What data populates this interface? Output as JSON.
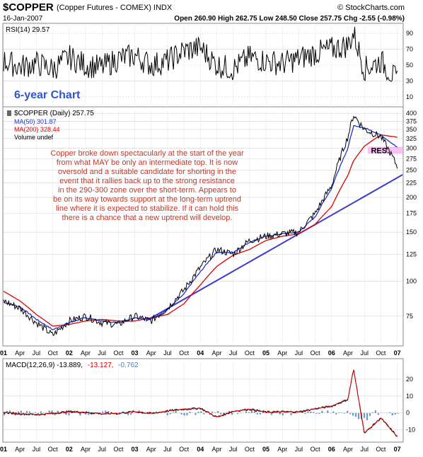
{
  "header": {
    "symbol": "$COPPER",
    "description": "(Copper Futures - COMEX) INDX",
    "date": "16-Jan-2007",
    "watermark": "© StockCharts.com",
    "quote": "Open 260.90  High 262.75  Low 248.50  Close 257.75  Chg -2.55 (-0.98%)"
  },
  "rsi": {
    "label": "RSI(14) 29.57",
    "ticks": [
      "90",
      "70",
      "50",
      "30",
      "10"
    ]
  },
  "main": {
    "chart_title": "6-year Chart",
    "legend": [
      {
        "text": "$COPPER (Daily) 257.75",
        "color": "#000000"
      },
      {
        "text": "MA(50) 301.87",
        "color": "#2233cc"
      },
      {
        "text": "MA(200) 328.44",
        "color": "#dd0000"
      },
      {
        "text": "Volume undef",
        "color": "#000000"
      }
    ],
    "annotation": [
      "Copper broke down spectacularly at the start of the year",
      "from what MAY be only an intermediate top. It is now",
      "oversold and a suitable candidate for shorting in the",
      "event that it rallies back up to the strong resistance",
      "in the 290-300 zone over the short-term. Appears to",
      "be on its way towards support at the long-term uptrend",
      "line where it is expected to stabilize. If it can hold this",
      "there is a chance that a new uptrend will develop."
    ],
    "res_label": "RES.",
    "ticks": [
      "400",
      "375",
      "350",
      "325",
      "300",
      "275",
      "250",
      "225",
      "200",
      "175",
      "150",
      "125",
      "100",
      "75"
    ]
  },
  "macd": {
    "label_black": "MACD(12,26,9) -13.889,",
    "label_red": "-13.127,",
    "label_blue": "-0.762",
    "ticks": [
      "20",
      "10",
      "0",
      "-10"
    ]
  },
  "x_axis_labels": [
    "01",
    "Apr",
    "Jul",
    "Oct",
    "02",
    "Apr",
    "Jul",
    "Oct",
    "03",
    "Apr",
    "Jul",
    "Oct",
    "04",
    "Apr",
    "Jul",
    "Oct",
    "05",
    "Apr",
    "Jul",
    "Oct",
    "06",
    "Apr",
    "Jul",
    "Oct",
    "07"
  ],
  "chart_data": {
    "type": "line",
    "log_scale": true,
    "ylim": [
      60,
      410
    ],
    "dates": [
      "2001-01",
      "2001-04",
      "2001-07",
      "2001-10",
      "2002-01",
      "2002-04",
      "2002-07",
      "2002-10",
      "2003-01",
      "2003-04",
      "2003-07",
      "2003-10",
      "2004-01",
      "2004-04",
      "2004-07",
      "2004-10",
      "2005-01",
      "2005-04",
      "2005-07",
      "2005-10",
      "2006-01",
      "2006-04",
      "2006-05",
      "2006-07",
      "2006-10",
      "2007-01"
    ],
    "series": [
      {
        "name": "$COPPER (Daily)",
        "values": [
          85,
          80,
          71,
          64,
          72,
          75,
          71,
          70,
          75,
          72,
          80,
          93,
          112,
          130,
          125,
          140,
          145,
          148,
          150,
          175,
          220,
          330,
          395,
          350,
          330,
          257.75
        ]
      },
      {
        "name": "MA(50)",
        "values": [
          84,
          81,
          73,
          67,
          71,
          74,
          72,
          71,
          74,
          73,
          79,
          90,
          108,
          127,
          127,
          138,
          145,
          148,
          150,
          170,
          215,
          300,
          360,
          355,
          335,
          301.87
        ]
      },
      {
        "name": "MA(200)",
        "values": [
          92,
          85,
          76,
          69,
          70,
          72,
          73,
          72,
          72,
          74,
          76,
          83,
          97,
          113,
          124,
          130,
          140,
          145,
          148,
          160,
          185,
          240,
          270,
          305,
          335,
          328.44
        ]
      }
    ],
    "trendline": {
      "from": [
        "2003-03",
        72
      ],
      "to": [
        "2007-01",
        235
      ]
    },
    "resistance_zone": [
      290,
      300
    ],
    "rsi_values": [
      55,
      48,
      52,
      45,
      60,
      50,
      47,
      58,
      62,
      50,
      55,
      68,
      72,
      50,
      45,
      60,
      55,
      52,
      58,
      65,
      70,
      75,
      90,
      45,
      55,
      29.57
    ],
    "macd_values": [
      0.3,
      -0.5,
      -1,
      -0.3,
      0.8,
      0.3,
      -0.5,
      -0.2,
      0.8,
      -0.3,
      1.2,
      2.2,
      2.8,
      -2.5,
      1,
      2.2,
      0.5,
      0.7,
      0.6,
      2.5,
      4,
      8,
      26,
      -12,
      -3,
      -13.889
    ]
  },
  "colors": {
    "price": "#000000",
    "ma50": "#2233cc",
    "ma200": "#dd0000",
    "trendline": "#3b3bcc",
    "annotation": "#c0392b",
    "title": "#3355cc",
    "res_band": "#f6b6f0",
    "grid": "#c8c8c8",
    "macd_hist": "#4a7fb0"
  }
}
